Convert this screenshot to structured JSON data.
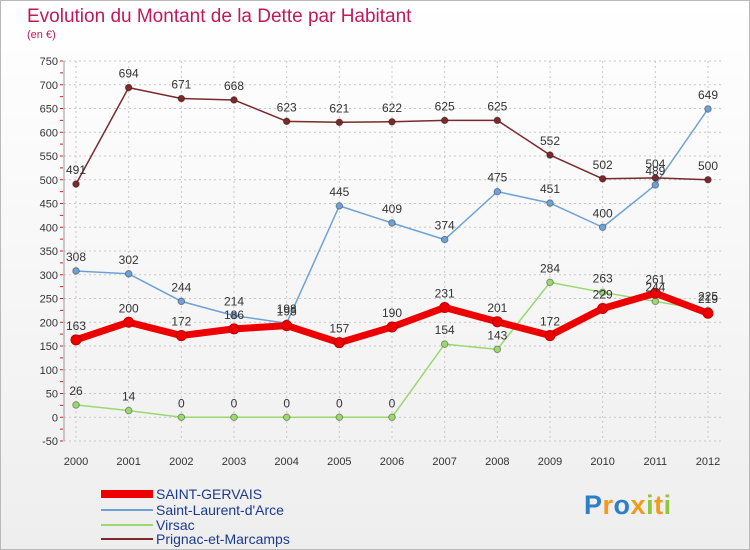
{
  "chart_data": {
    "type": "line",
    "title": "Evolution du Montant de la Dette par Habitant",
    "subtitle": "(en €)",
    "xlabel": "",
    "ylabel": "",
    "ylim": [
      -50,
      750
    ],
    "yticks": [
      -50,
      0,
      50,
      100,
      150,
      200,
      250,
      300,
      350,
      400,
      450,
      500,
      550,
      600,
      650,
      700,
      750
    ],
    "grid": true,
    "legend": "bottom-left",
    "categories": [
      "2000",
      "2001",
      "2002",
      "2003",
      "2004",
      "2005",
      "2006",
      "2007",
      "2008",
      "2009",
      "2010",
      "2011",
      "2012"
    ],
    "series": [
      {
        "name": "SAINT-GERVAIS",
        "color": "#ee0000",
        "width": 7,
        "values": [
          163,
          200,
          172,
          186,
          193,
          157,
          190,
          231,
          201,
          172,
          229,
          261,
          219
        ],
        "labels": [
          "163",
          "200",
          "172",
          "186",
          "193",
          "157",
          "190",
          "231",
          "201",
          "172",
          "229",
          "261",
          "219"
        ]
      },
      {
        "name": "Saint-Laurent-d'Arce",
        "color": "#6fa2d4",
        "width": 1.5,
        "values": [
          308,
          302,
          244,
          214,
          198,
          445,
          409,
          374,
          475,
          451,
          400,
          489,
          649
        ],
        "labels": [
          "308",
          "302",
          "244",
          "214",
          "198",
          "445",
          "409",
          "374",
          "475",
          "451",
          "400",
          "489",
          "649"
        ]
      },
      {
        "name": "Virsac",
        "color": "#9ad870",
        "width": 1.5,
        "values": [
          26,
          14,
          0,
          0,
          0,
          0,
          0,
          154,
          143,
          284,
          263,
          244,
          225
        ],
        "labels": [
          "26",
          "14",
          "0",
          "0",
          "0",
          "0",
          "0",
          "154",
          "143",
          "284",
          "263",
          "244",
          "225"
        ]
      },
      {
        "name": "Prignac-et-Marcamps",
        "color": "#7a2a2a",
        "width": 1.5,
        "values": [
          491,
          694,
          671,
          668,
          623,
          621,
          622,
          625,
          625,
          552,
          502,
          504,
          500
        ],
        "labels": [
          "491",
          "694",
          "671",
          "668",
          "623",
          "621",
          "622",
          "625",
          "625",
          "552",
          "502",
          "504",
          "500"
        ]
      }
    ]
  },
  "brand": {
    "logo_text": "Proxiti"
  }
}
